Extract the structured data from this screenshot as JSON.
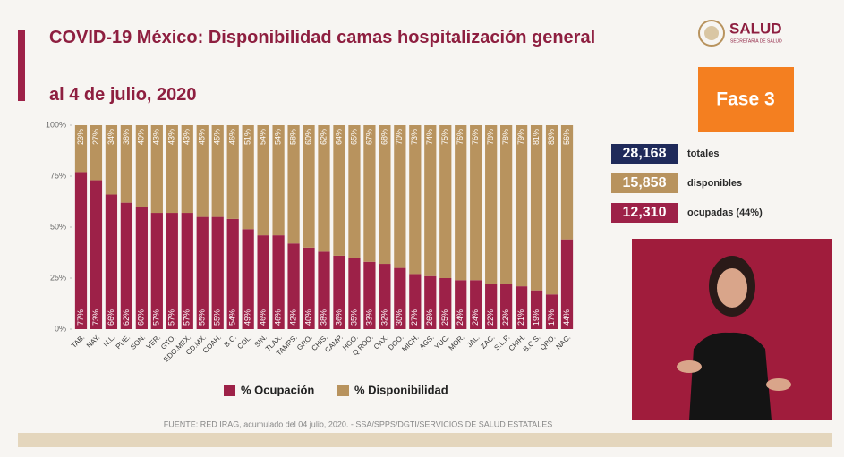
{
  "chart_data": {
    "type": "stacked_bar",
    "title": "COVID-19 México: Disponibilidad camas hospitalización general",
    "subtitle": "al 4 de julio, 2020",
    "categories": [
      "TAB.",
      "NAY.",
      "N.L.",
      "PUE.",
      "SON.",
      "VER.",
      "GTO.",
      "EDO.MEX.",
      "CD.MX.",
      "COAH.",
      "B.C.",
      "COL.",
      "SIN.",
      "TLAX.",
      "TAMPS.",
      "GRO.",
      "CHIS.",
      "CAMP.",
      "HGO.",
      "Q.ROO.",
      "OAX.",
      "DGO.",
      "MICH.",
      "AGS.",
      "YUC.",
      "MOR.",
      "JAL.",
      "ZAC.",
      "S.L.P.",
      "CHIH.",
      "B.C.S.",
      "QRO.",
      "NAC."
    ],
    "series": [
      {
        "name": "% Ocupación",
        "color": "#9d2148",
        "values": [
          77,
          73,
          66,
          62,
          60,
          57,
          57,
          57,
          55,
          55,
          54,
          49,
          46,
          46,
          42,
          40,
          38,
          36,
          35,
          33,
          32,
          30,
          27,
          26,
          25,
          24,
          24,
          22,
          22,
          21,
          19,
          17,
          44
        ],
        "value_labels": [
          "77%",
          "73%",
          "66%",
          "62%",
          "60%",
          "57%",
          "57%",
          "57%",
          "55%",
          "55%",
          "54%",
          "49%",
          "46%",
          "46%",
          "42%",
          "40%",
          "38%",
          "36%",
          "35%",
          "33%",
          "32%",
          "30%",
          "27%",
          "26%",
          "25%",
          "24%",
          "24%",
          "22%",
          "22%",
          "21%",
          "19%",
          "17%",
          "44%"
        ]
      },
      {
        "name": "% Disponibilidad",
        "color": "#b8935e",
        "values": [
          23,
          27,
          34,
          38,
          40,
          43,
          43,
          43,
          45,
          45,
          46,
          51,
          54,
          54,
          58,
          60,
          62,
          64,
          65,
          67,
          68,
          70,
          73,
          74,
          75,
          76,
          76,
          78,
          78,
          79,
          81,
          83,
          56
        ],
        "value_labels": [
          "23%",
          "27%",
          "34%",
          "38%",
          "40%",
          "43%",
          "43%",
          "43%",
          "45%",
          "45%",
          "46%",
          "51%",
          "54%",
          "54%",
          "58%",
          "60%",
          "62%",
          "64%",
          "65%",
          "67%",
          "68%",
          "70%",
          "73%",
          "74%",
          "75%",
          "76%",
          "76%",
          "78%",
          "78%",
          "79%",
          "81%",
          "83%",
          "56%"
        ]
      }
    ],
    "ylim": [
      0,
      100
    ],
    "yticks": [
      {
        "value": 0,
        "label": "0%"
      },
      {
        "value": 25,
        "label": "25%"
      },
      {
        "value": 50,
        "label": "50%"
      },
      {
        "value": 75,
        "label": "75%"
      },
      {
        "value": 100,
        "label": "100%"
      }
    ],
    "source": "FUENTE: RED IRAG, acumulado del 04 julio, 2020. -  SSA/SPPS/DGTI/SERVICIOS DE SALUD ESTATALES"
  },
  "header": {
    "logo": "SALUD",
    "logo_sub": "SECRETARÍA DE SALUD",
    "phase": "Fase 3"
  },
  "stats": [
    {
      "value": "28,168",
      "label": "totales",
      "color": "#1f2a5a"
    },
    {
      "value": "15,858",
      "label": "disponibles",
      "color": "#b8935e"
    },
    {
      "value": "12,310",
      "label": "ocupadas (44%)",
      "color": "#9d2148"
    }
  ]
}
